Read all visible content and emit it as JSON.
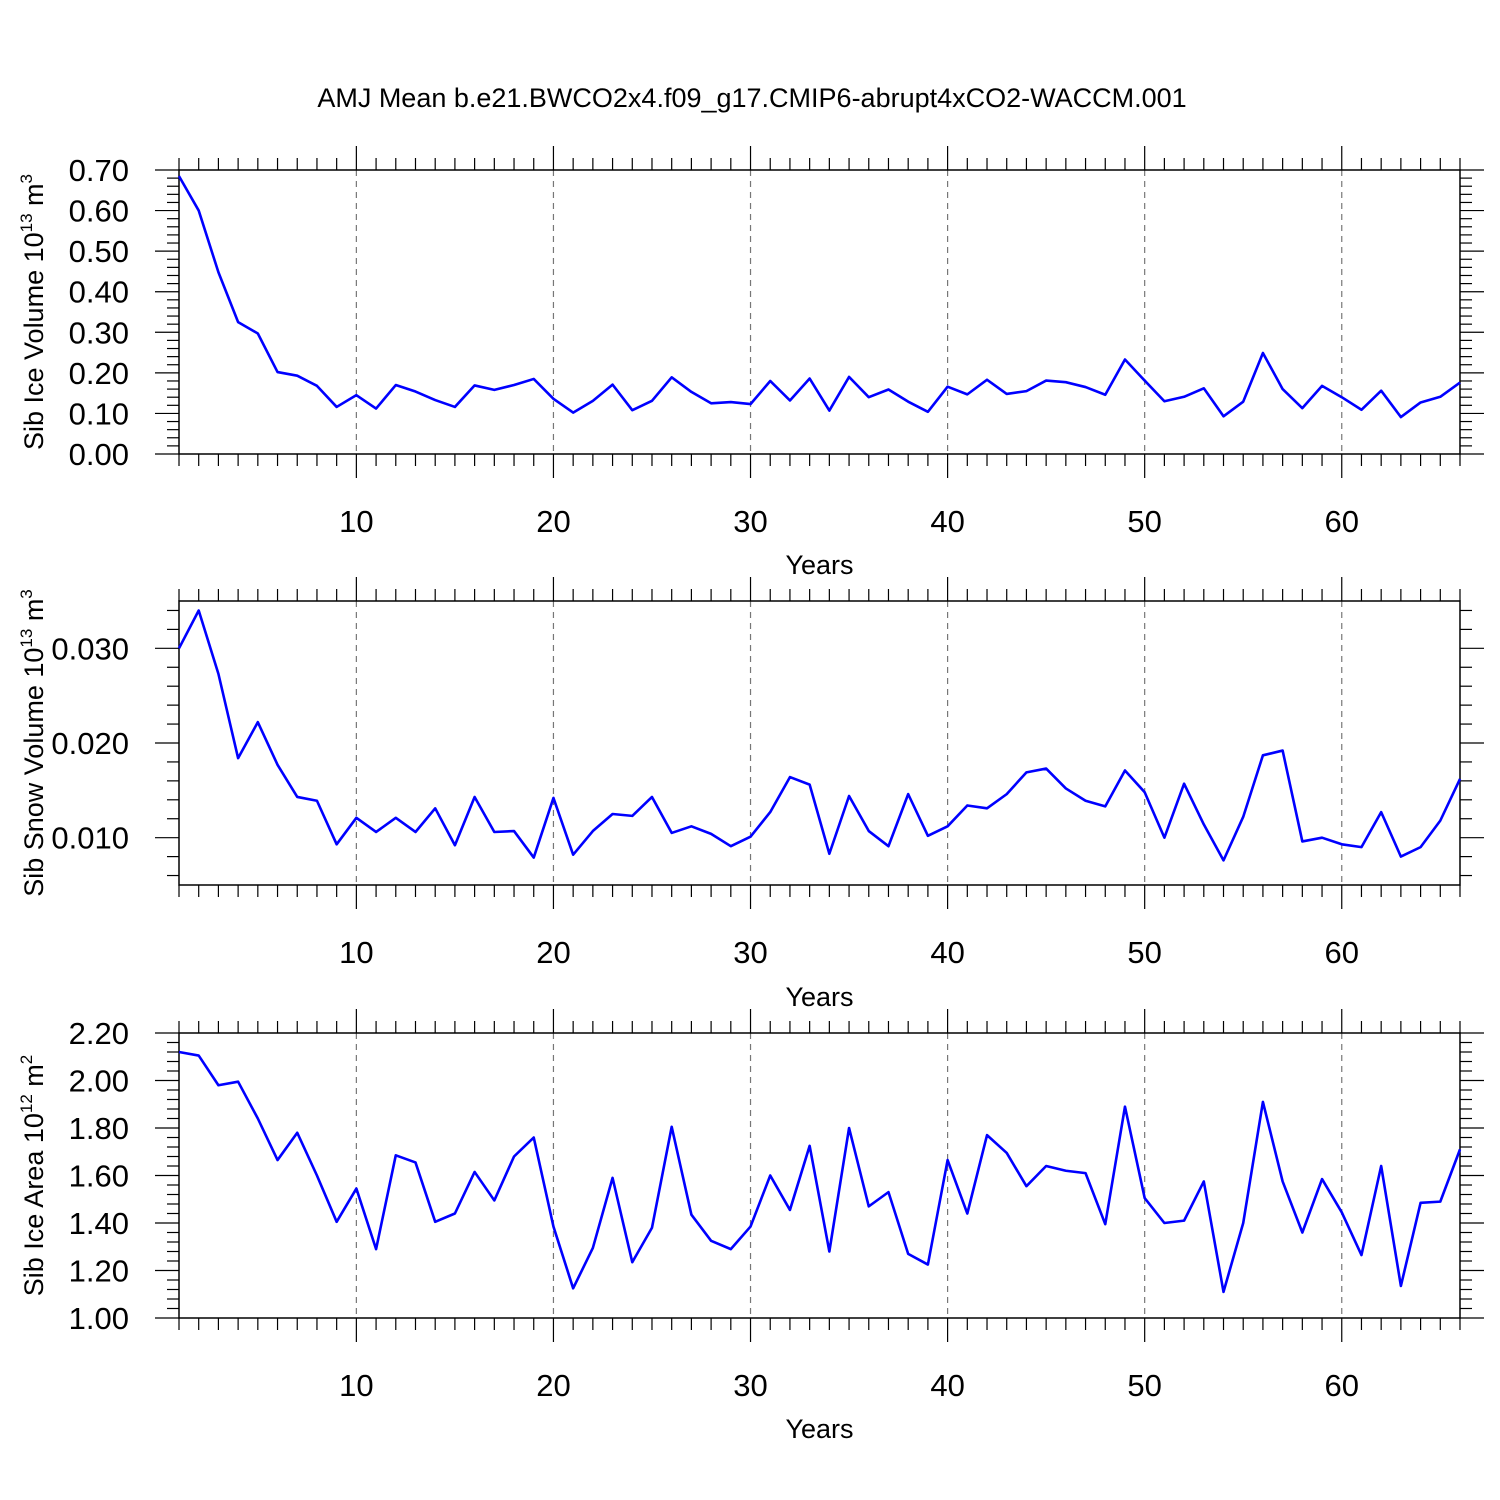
{
  "title": "AMJ Mean b.e21.BWCO2x4.f09_g17.CMIP6-abrupt4xCO2-WACCM.001",
  "chart_data": [
    {
      "type": "line",
      "ylabel": "Sib Ice Volume 10",
      "ylabel_exp": "13",
      "ylabel_unit": " m",
      "ylabel_unit_exp": "3",
      "xlabel": "Years",
      "xlim": [
        1,
        66
      ],
      "ylim": [
        0,
        0.7
      ],
      "xticks": [
        10,
        20,
        30,
        40,
        50,
        60
      ],
      "yticks": [
        "0.00",
        "0.10",
        "0.20",
        "0.30",
        "0.40",
        "0.50",
        "0.60",
        "0.70"
      ],
      "grid_x": true,
      "line_color": "#0000ff",
      "x_start": 1,
      "values": [
        0.685,
        0.6,
        0.448,
        0.325,
        0.297,
        0.202,
        0.193,
        0.168,
        0.116,
        0.145,
        0.112,
        0.17,
        0.154,
        0.133,
        0.116,
        0.169,
        0.158,
        0.17,
        0.185,
        0.136,
        0.102,
        0.131,
        0.171,
        0.108,
        0.131,
        0.189,
        0.153,
        0.125,
        0.128,
        0.123,
        0.18,
        0.132,
        0.186,
        0.107,
        0.19,
        0.14,
        0.159,
        0.129,
        0.104,
        0.166,
        0.147,
        0.183,
        0.148,
        0.155,
        0.181,
        0.177,
        0.165,
        0.146,
        0.233,
        0.181,
        0.13,
        0.141,
        0.162,
        0.093,
        0.129,
        0.249,
        0.16,
        0.113,
        0.168,
        0.14,
        0.109,
        0.156,
        0.091,
        0.127,
        0.141,
        0.176
      ]
    },
    {
      "type": "line",
      "ylabel": "Sib Snow Volume 10",
      "ylabel_exp": "13",
      "ylabel_unit": " m",
      "ylabel_unit_exp": "3",
      "xlabel": "Years",
      "xlim": [
        1,
        66
      ],
      "ylim": [
        0.005,
        0.035
      ],
      "xticks": [
        10,
        20,
        30,
        40,
        50,
        60
      ],
      "yticks": [
        "0.010",
        "0.020",
        "0.030"
      ],
      "grid_x": true,
      "line_color": "#0000ff",
      "x_start": 1,
      "values": [
        0.03,
        0.034,
        0.0273,
        0.0184,
        0.0222,
        0.0177,
        0.0143,
        0.0139,
        0.0093,
        0.0121,
        0.0106,
        0.0121,
        0.0106,
        0.0131,
        0.0092,
        0.0143,
        0.0106,
        0.0107,
        0.0079,
        0.0142,
        0.0082,
        0.0107,
        0.0125,
        0.0123,
        0.0143,
        0.0105,
        0.0112,
        0.0104,
        0.0091,
        0.0101,
        0.0127,
        0.0164,
        0.0156,
        0.0083,
        0.0144,
        0.0107,
        0.0091,
        0.0146,
        0.0102,
        0.0112,
        0.0134,
        0.0131,
        0.0146,
        0.0169,
        0.0173,
        0.0152,
        0.0139,
        0.0133,
        0.0171,
        0.0148,
        0.01,
        0.0157,
        0.0114,
        0.0076,
        0.0122,
        0.0187,
        0.0192,
        0.0096,
        0.01,
        0.0093,
        0.009,
        0.0127,
        0.008,
        0.009,
        0.0118,
        0.0162
      ]
    },
    {
      "type": "line",
      "ylabel": "Sib Ice Area 10",
      "ylabel_exp": "12",
      "ylabel_unit": " m",
      "ylabel_unit_exp": "2",
      "xlabel": "Years",
      "xlim": [
        1,
        66
      ],
      "ylim": [
        1.0,
        2.2
      ],
      "xticks": [
        10,
        20,
        30,
        40,
        50,
        60
      ],
      "yticks": [
        "1.00",
        "1.20",
        "1.40",
        "1.60",
        "1.80",
        "2.00",
        "2.20"
      ],
      "grid_x": true,
      "line_color": "#0000ff",
      "x_start": 1,
      "values": [
        2.12,
        2.105,
        1.98,
        1.995,
        1.84,
        1.665,
        1.78,
        1.6,
        1.405,
        1.545,
        1.29,
        1.685,
        1.655,
        1.405,
        1.44,
        1.615,
        1.495,
        1.68,
        1.76,
        1.385,
        1.125,
        1.295,
        1.59,
        1.235,
        1.38,
        1.805,
        1.435,
        1.325,
        1.29,
        1.385,
        1.6,
        1.455,
        1.725,
        1.28,
        1.8,
        1.47,
        1.53,
        1.27,
        1.225,
        1.665,
        1.44,
        1.77,
        1.695,
        1.555,
        1.64,
        1.62,
        1.61,
        1.395,
        1.89,
        1.505,
        1.4,
        1.41,
        1.575,
        1.11,
        1.4,
        1.91,
        1.575,
        1.36,
        1.585,
        1.445,
        1.265,
        1.64,
        1.135,
        1.485,
        1.49,
        1.71
      ]
    }
  ]
}
